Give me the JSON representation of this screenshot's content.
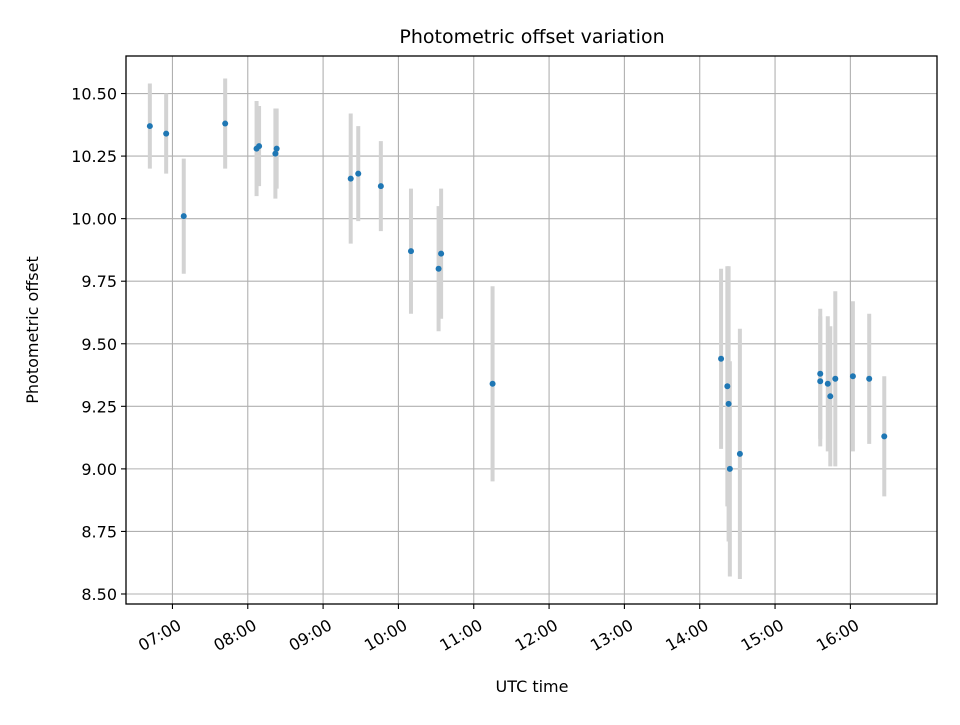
{
  "chart_data": {
    "type": "scatter",
    "title": "Photometric offset variation",
    "xlabel": "UTC time",
    "ylabel": "Photometric offset",
    "x_unit": "UTC time of day (HH:MM)",
    "xlim": [
      "06:23",
      "17:09"
    ],
    "ylim": [
      8.46,
      10.65
    ],
    "xticks": [
      "07:00",
      "08:00",
      "09:00",
      "10:00",
      "11:00",
      "12:00",
      "13:00",
      "14:00",
      "15:00",
      "16:00"
    ],
    "yticks": [
      "8.50",
      "8.75",
      "9.00",
      "9.25",
      "9.50",
      "9.75",
      "10.00",
      "10.25",
      "10.50"
    ],
    "grid": true,
    "legend": "none",
    "colors": {
      "points": "#1f77b4",
      "errorbars": "#d3d3d3",
      "grid": "#b0b0b0"
    },
    "series": [
      {
        "points": [
          {
            "x": "06:42",
            "y": 10.37,
            "yerr": 0.17
          },
          {
            "x": "06:55",
            "y": 10.34,
            "yerr": 0.16
          },
          {
            "x": "07:09",
            "y": 10.01,
            "yerr": 0.23
          },
          {
            "x": "07:42",
            "y": 10.38,
            "yerr": 0.18
          },
          {
            "x": "08:07",
            "y": 10.28,
            "yerr": 0.19
          },
          {
            "x": "08:09",
            "y": 10.29,
            "yerr": 0.16
          },
          {
            "x": "08:22",
            "y": 10.26,
            "yerr": 0.18
          },
          {
            "x": "08:23",
            "y": 10.28,
            "yerr": 0.16
          },
          {
            "x": "09:22",
            "y": 10.16,
            "yerr": 0.26
          },
          {
            "x": "09:28",
            "y": 10.18,
            "yerr": 0.19
          },
          {
            "x": "09:46",
            "y": 10.13,
            "yerr": 0.18
          },
          {
            "x": "10:10",
            "y": 9.87,
            "yerr": 0.25
          },
          {
            "x": "10:32",
            "y": 9.8,
            "yerr": 0.25
          },
          {
            "x": "10:34",
            "y": 9.86,
            "yerr": 0.26
          },
          {
            "x": "11:15",
            "y": 9.34,
            "yerr": 0.39
          },
          {
            "x": "14:17",
            "y": 9.44,
            "yerr": 0.36
          },
          {
            "x": "14:22",
            "y": 9.33,
            "yerr": 0.48
          },
          {
            "x": "14:23",
            "y": 9.26,
            "yerr": 0.55
          },
          {
            "x": "14:24",
            "y": 9.0,
            "yerr": 0.43
          },
          {
            "x": "14:32",
            "y": 9.06,
            "yerr": 0.5
          },
          {
            "x": "15:36",
            "y": 9.38,
            "yerr": 0.26
          },
          {
            "x": "15:36",
            "y": 9.35,
            "yerr": 0.26
          },
          {
            "x": "15:42",
            "y": 9.34,
            "yerr": 0.27
          },
          {
            "x": "15:44",
            "y": 9.29,
            "yerr": 0.28
          },
          {
            "x": "15:48",
            "y": 9.36,
            "yerr": 0.35
          },
          {
            "x": "16:02",
            "y": 9.37,
            "yerr": 0.3
          },
          {
            "x": "16:15",
            "y": 9.36,
            "yerr": 0.26
          },
          {
            "x": "16:27",
            "y": 9.13,
            "yerr": 0.24
          }
        ]
      }
    ]
  }
}
